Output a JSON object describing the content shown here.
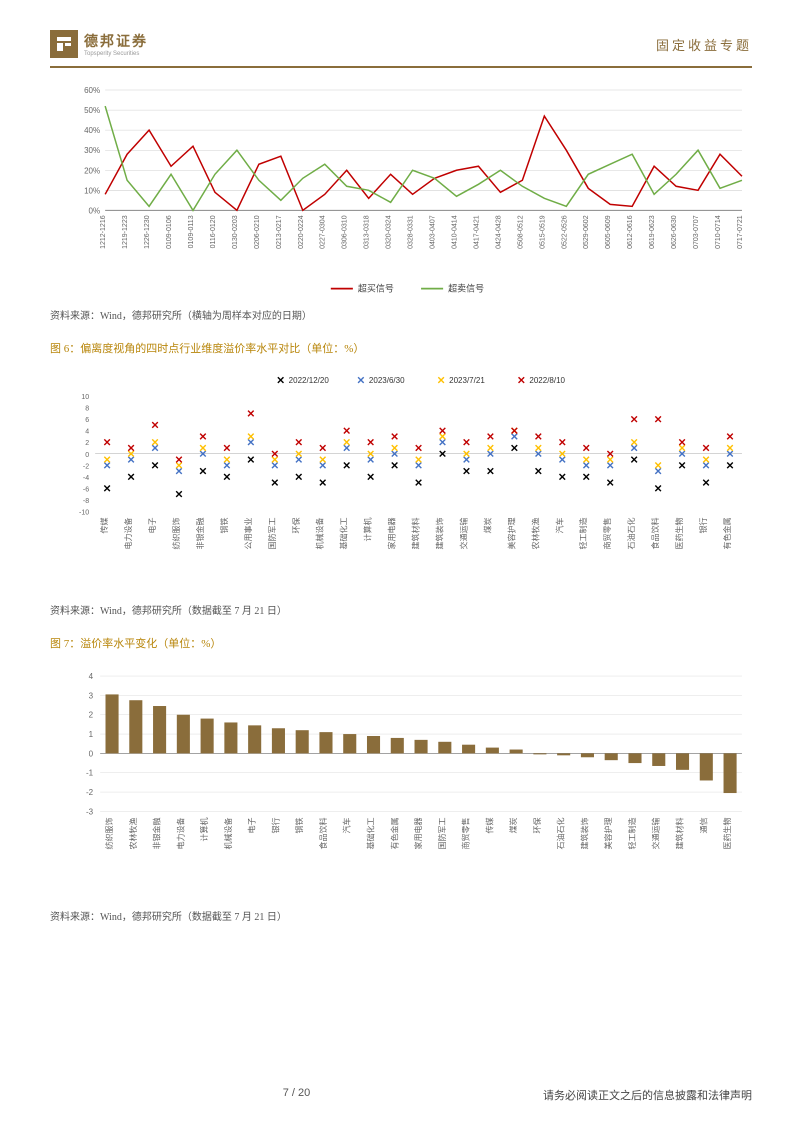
{
  "header": {
    "logo_cn": "德邦证券",
    "logo_en": "Topsperity Securities",
    "right": "固定收益专题"
  },
  "chart1": {
    "type": "line",
    "ylabel_ticks": [
      "0%",
      "10%",
      "20%",
      "30%",
      "40%",
      "50%",
      "60%"
    ],
    "ylim": [
      0,
      60
    ],
    "colors": {
      "s1": "#c00000",
      "s2": "#70ad47",
      "axis": "#888",
      "grid": "#d0d0d0"
    },
    "legend": [
      {
        "label": "超买信号",
        "color": "#c00000"
      },
      {
        "label": "超卖信号",
        "color": "#70ad47"
      }
    ],
    "x_labels": [
      "1212-1216",
      "1219-1223",
      "1226-1230",
      "0109-0106",
      "0109-0113",
      "0116-0120",
      "0130-0203",
      "0206-0210",
      "0213-0217",
      "0220-0224",
      "0227-0304",
      "0306-0310",
      "0313-0318",
      "0320-0324",
      "0328-0331",
      "0403-0407",
      "0410-0414",
      "0417-0421",
      "0424-0428",
      "0508-0512",
      "0515-0519",
      "0522-0526",
      "0529-0602",
      "0605-0609",
      "0612-0616",
      "0619-0623",
      "0626-0630",
      "0703-0707",
      "0710-0714",
      "0717-0721"
    ],
    "s1": [
      8,
      28,
      40,
      22,
      32,
      9,
      0,
      23,
      27,
      0,
      8,
      20,
      6,
      18,
      8,
      16,
      20,
      22,
      9,
      15,
      47,
      30,
      11,
      3,
      2,
      22,
      12,
      10,
      28,
      17
    ],
    "s2": [
      52,
      15,
      2,
      18,
      0,
      18,
      30,
      15,
      5,
      16,
      23,
      12,
      10,
      4,
      20,
      16,
      7,
      13,
      20,
      12,
      6,
      2,
      18,
      23,
      28,
      8,
      18,
      30,
      11,
      15
    ]
  },
  "source1": "资料来源：Wind，德邦研究所（横轴为周样本对应的日期）",
  "fig6_title": "图 6：偏离度视角的四时点行业维度溢价率水平对比（单位：%）",
  "chart2": {
    "type": "scatter",
    "ylim": [
      -10,
      10
    ],
    "yticks": [
      -10,
      -8,
      -6,
      -4,
      -2,
      0,
      2,
      4,
      6,
      8,
      10
    ],
    "legend": [
      {
        "label": "2022/12/20",
        "color": "#000000"
      },
      {
        "label": "2023/6/30",
        "color": "#4472c4"
      },
      {
        "label": "2023/7/21",
        "color": "#ffc000"
      },
      {
        "label": "2022/8/10",
        "color": "#c00000"
      }
    ],
    "x_labels": [
      "传媒",
      "电力设备",
      "电子",
      "纺织服饰",
      "非银金融",
      "钢铁",
      "公用事业",
      "国防军工",
      "环保",
      "机械设备",
      "基础化工",
      "计算机",
      "家用电器",
      "建筑材料",
      "建筑装饰",
      "交通运输",
      "煤炭",
      "美容护理",
      "农林牧渔",
      "汽车",
      "轻工制造",
      "商贸零售",
      "石油石化",
      "食品饮料",
      "医药生物",
      "银行",
      "有色金属"
    ],
    "dblack": [
      -6,
      -4,
      -2,
      -7,
      -3,
      -4,
      -1,
      -5,
      -4,
      -5,
      -2,
      -4,
      -2,
      -5,
      0,
      -3,
      -3,
      1,
      -3,
      -4,
      -4,
      -5,
      -1,
      -6,
      -2,
      -5,
      -2
    ],
    "dblue": [
      -2,
      -1,
      1,
      -3,
      0,
      -2,
      2,
      -2,
      -1,
      -2,
      1,
      -1,
      0,
      -2,
      2,
      -1,
      0,
      3,
      0,
      -1,
      -2,
      -2,
      1,
      -3,
      0,
      -2,
      0
    ],
    "dyellow": [
      -1,
      0,
      2,
      -2,
      1,
      -1,
      3,
      -1,
      0,
      -1,
      2,
      0,
      1,
      -1,
      3,
      0,
      1,
      4,
      1,
      0,
      -1,
      -1,
      2,
      -2,
      1,
      -1,
      1
    ],
    "dred": [
      2,
      1,
      5,
      -1,
      3,
      1,
      7,
      0,
      2,
      1,
      4,
      2,
      3,
      1,
      4,
      2,
      3,
      4,
      3,
      2,
      1,
      0,
      6,
      6,
      2,
      1,
      3
    ]
  },
  "source2": "资料来源：Wind，德邦研究所（数据截至 7 月 21 日）",
  "fig7_title": "图 7：溢价率水平变化（单位：%）",
  "chart3": {
    "type": "bar",
    "ylim": [
      -3,
      4
    ],
    "yticks": [
      -3,
      -2,
      -1,
      0,
      1,
      2,
      3,
      4
    ],
    "bar_color": "#8a6d3b",
    "x_labels": [
      "纺织服饰",
      "农林牧渔",
      "非银金融",
      "电力设备",
      "计算机",
      "机械设备",
      "电子",
      "银行",
      "钢铁",
      "食品饮料",
      "汽车",
      "基础化工",
      "有色金属",
      "家用电器",
      "国防军工",
      "商贸零售",
      "传媒",
      "煤炭",
      "环保",
      "石油石化",
      "建筑装饰",
      "美容护理",
      "轻工制造",
      "交通运输",
      "建筑材料",
      "通信",
      "医药生物"
    ],
    "values": [
      3.05,
      2.75,
      2.45,
      2.0,
      1.8,
      1.6,
      1.45,
      1.3,
      1.2,
      1.1,
      1.0,
      0.9,
      0.8,
      0.7,
      0.6,
      0.45,
      0.3,
      0.2,
      -0.05,
      -0.1,
      -0.2,
      -0.35,
      -0.5,
      -0.65,
      -0.85,
      -1.4,
      -2.05
    ]
  },
  "source3": "资料来源：Wind，德邦研究所（数据截至 7 月 21 日）",
  "footer": {
    "center": "7 / 20",
    "right": "请务必阅读正文之后的信息披露和法律声明"
  }
}
